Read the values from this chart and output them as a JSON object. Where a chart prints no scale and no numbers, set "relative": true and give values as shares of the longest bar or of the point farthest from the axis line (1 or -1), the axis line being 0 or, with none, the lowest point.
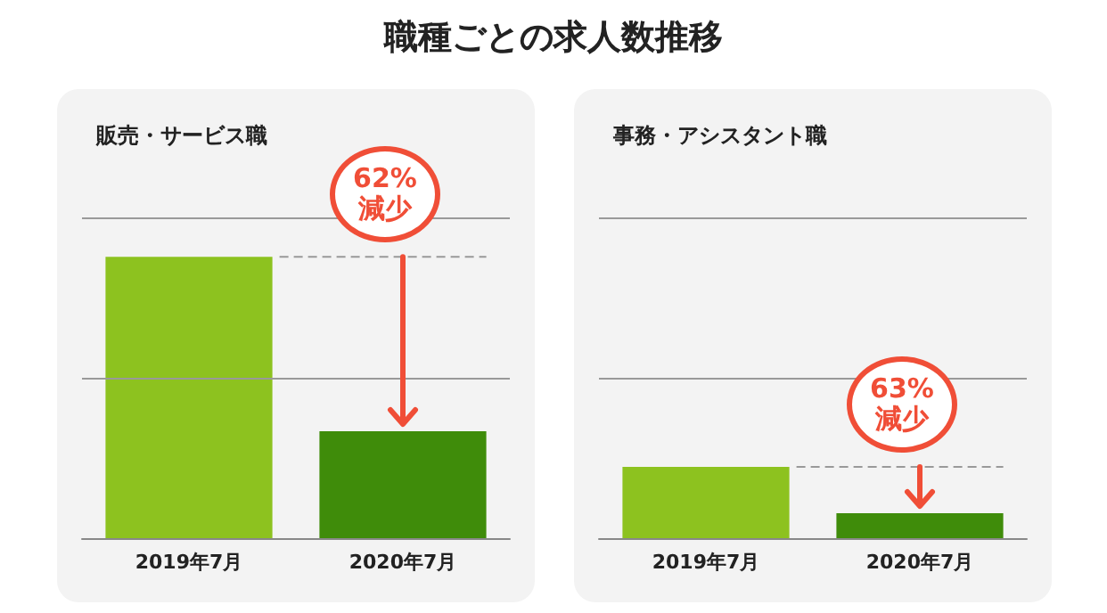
{
  "chart_data": [
    {
      "type": "bar",
      "title": "職種ごとの求人数推移",
      "subtitle": "販売・サービス職",
      "categories": [
        "2019年7月",
        "2020年7月"
      ],
      "values": [
        1,
        0.38
      ],
      "colors": [
        "#8dc21f",
        "#3f8c0a"
      ],
      "relative": true,
      "ref_lines": [
        {
          "axis": "y",
          "value": 0.57,
          "color": "#999999"
        },
        {
          "axis": "y",
          "value": 1.14,
          "color": "#999999"
        }
      ],
      "annotations": [
        "62%減少"
      ]
    },
    {
      "type": "bar",
      "subtitle": "事務・アシスタント職",
      "categories": [
        "2019年7月",
        "2020年7月"
      ],
      "values": [
        1,
        0.35
      ],
      "colors": [
        "#8dc21f",
        "#3f8c0a"
      ],
      "relative": true,
      "ref_lines": [
        {
          "axis": "y",
          "value": 2.25,
          "color": "#999999"
        },
        {
          "axis": "y",
          "value": 4.5,
          "color": "#999999"
        }
      ],
      "annotations": [
        "63%減少"
      ]
    }
  ]
}
